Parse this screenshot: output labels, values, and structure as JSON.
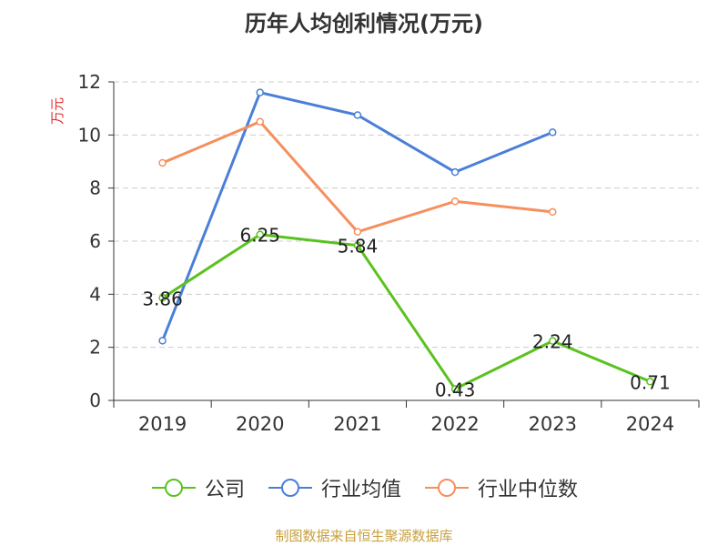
{
  "title": "历年人均创利情况(万元)",
  "source": "制图数据来自恒生聚源数据库",
  "colors": {
    "grid": "#cccccc",
    "axis": "#333333",
    "ylabel": "#e03030"
  },
  "chart_data": {
    "type": "line",
    "ylabel": "万元",
    "ylim": [
      0,
      12
    ],
    "yticks": [
      "0",
      "2",
      "4",
      "6",
      "8",
      "10",
      "12"
    ],
    "categories": [
      "2019",
      "2020",
      "2021",
      "2022",
      "2023",
      "2024"
    ],
    "grid": true,
    "legend_position": "bottom",
    "series": [
      {
        "name": "公司",
        "color": "#5ac21e",
        "values": [
          3.86,
          6.25,
          5.84,
          0.43,
          2.24,
          0.71
        ],
        "labels": [
          "3.86",
          "6.25",
          "5.84",
          "0.43",
          "2.24",
          "0.71"
        ]
      },
      {
        "name": "行业均值",
        "color": "#4a7fd8",
        "values": [
          2.25,
          11.6,
          10.75,
          8.6,
          10.1,
          null
        ]
      },
      {
        "name": "行业中位数",
        "color": "#f58f5e",
        "values": [
          8.95,
          10.5,
          6.35,
          7.5,
          7.1,
          null
        ]
      }
    ]
  }
}
